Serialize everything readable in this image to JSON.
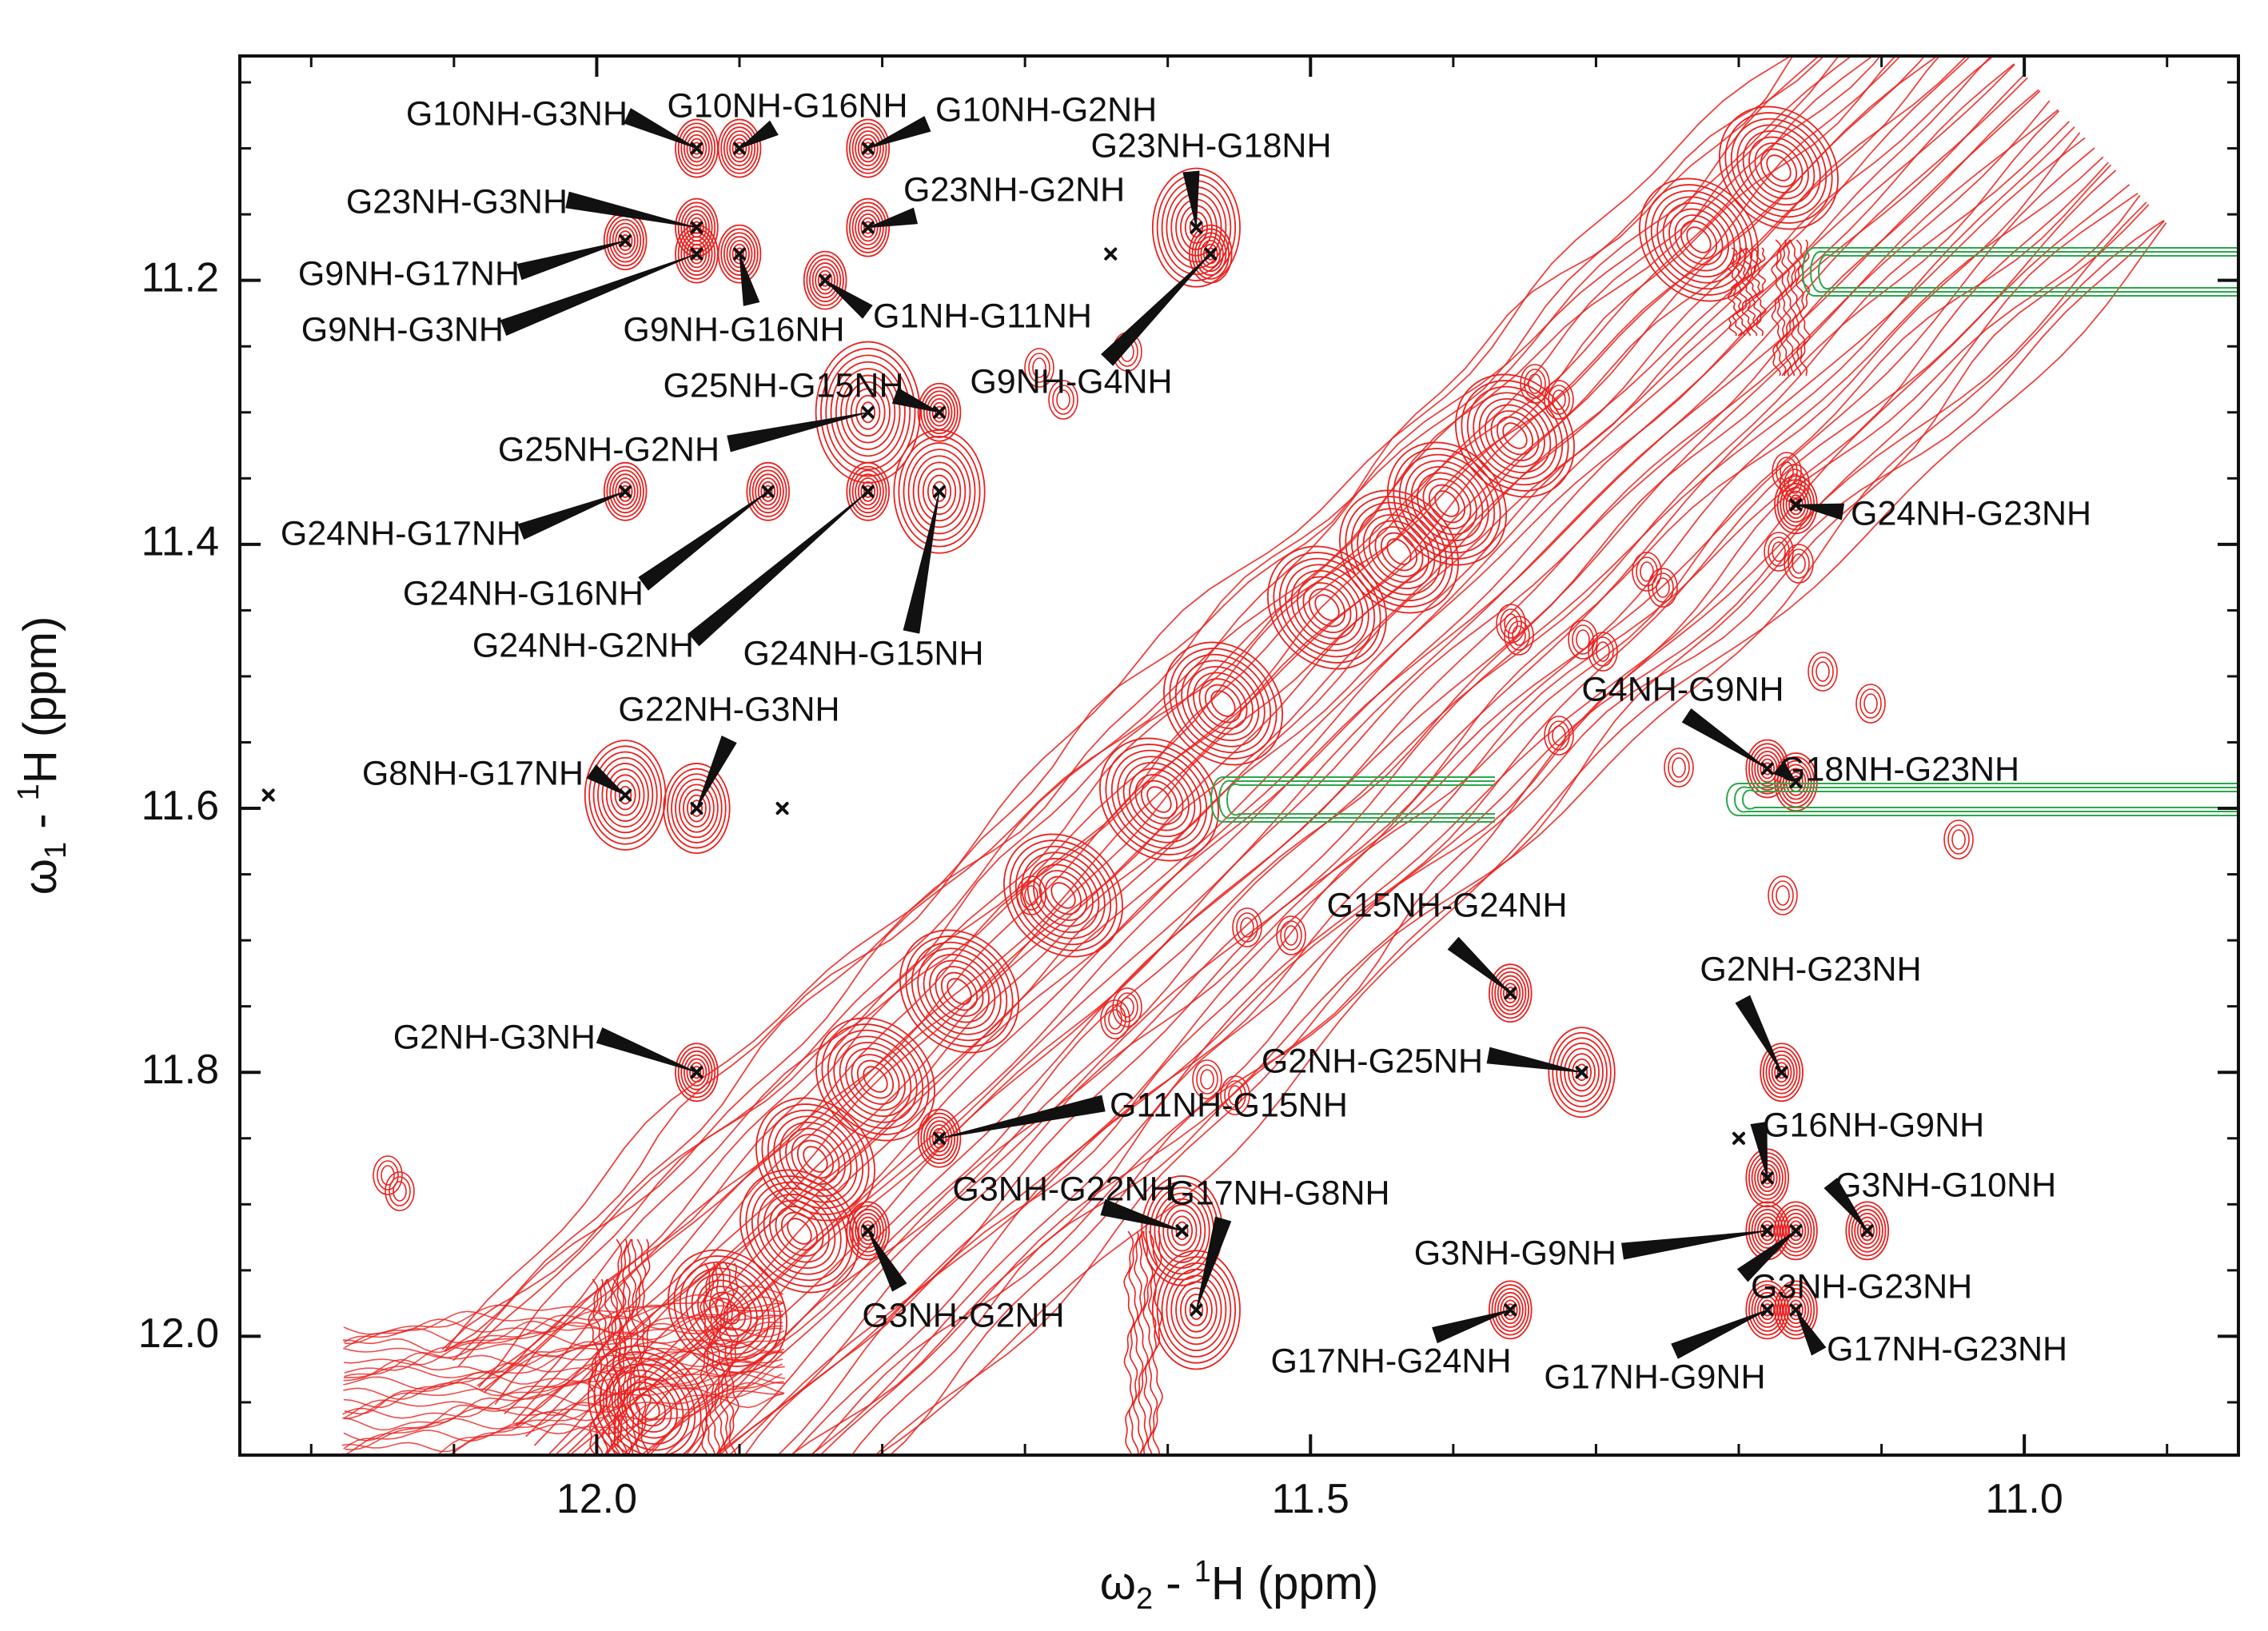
{
  "chart_data": {
    "type": "scatter",
    "title": "",
    "xlabel": {
      "prefix": "ω",
      "sub": "2",
      "mid": " - ",
      "sup": "1",
      "suffix": "H  (ppm)"
    },
    "ylabel": {
      "prefix": "ω",
      "sub": "1",
      "mid": " - ",
      "sup": "1",
      "suffix": "H  (ppm)"
    },
    "xlim": [
      12.25,
      10.85
    ],
    "ylim": [
      11.03,
      12.09
    ],
    "x_ticks": [
      {
        "value": 12.0,
        "label": "12.0"
      },
      {
        "value": 11.5,
        "label": "11.5"
      },
      {
        "value": 11.0,
        "label": "11.0"
      }
    ],
    "y_ticks": [
      {
        "value": 11.2,
        "label": "11.2"
      },
      {
        "value": 11.4,
        "label": "11.4"
      },
      {
        "value": 11.6,
        "label": "11.6"
      },
      {
        "value": 11.8,
        "label": "11.8"
      },
      {
        "value": 12.0,
        "label": "12.0"
      }
    ],
    "colors": {
      "positive_contour": "#e8221f",
      "negative_contour": "#2aa84a",
      "marker": "#111111",
      "axis": "#111111"
    },
    "cross_peaks": [
      {
        "label": "G10NH-G3NH",
        "x": 11.93,
        "y": 11.1
      },
      {
        "label": "G10NH-G16NH",
        "x": 11.9,
        "y": 11.1
      },
      {
        "label": "G10NH-G2NH",
        "x": 11.81,
        "y": 11.1
      },
      {
        "label": "G23NH-G18NH",
        "x": 11.58,
        "y": 11.16
      },
      {
        "label": "G23NH-G3NH",
        "x": 11.93,
        "y": 11.16
      },
      {
        "label": "G23NH-G2NH",
        "x": 11.81,
        "y": 11.16
      },
      {
        "label": "G9NH-G17NH",
        "x": 11.98,
        "y": 11.17
      },
      {
        "label": "G9NH-G3NH",
        "x": 11.93,
        "y": 11.18
      },
      {
        "label": "G9NH-G16NH",
        "x": 11.9,
        "y": 11.18
      },
      {
        "label": "G1NH-G11NH",
        "x": 11.84,
        "y": 11.2
      },
      {
        "label": "G9NH-G4NH",
        "x": 11.57,
        "y": 11.18
      },
      {
        "label": "G25NH-G15NH",
        "x": 11.76,
        "y": 11.3
      },
      {
        "label": "G25NH-G2NH",
        "x": 11.81,
        "y": 11.3
      },
      {
        "label": "G24NH-G17NH",
        "x": 11.98,
        "y": 11.36
      },
      {
        "label": "G24NH-G16NH",
        "x": 11.88,
        "y": 11.36
      },
      {
        "label": "G24NH-G2NH",
        "x": 11.81,
        "y": 11.36
      },
      {
        "label": "G24NH-G15NH",
        "x": 11.76,
        "y": 11.36
      },
      {
        "label": "G24NH-G23NH",
        "x": 11.16,
        "y": 11.37
      },
      {
        "label": "G4NH-G9NH",
        "x": 11.18,
        "y": 11.57
      },
      {
        "label": "G18NH-G23NH",
        "x": 11.16,
        "y": 11.58
      },
      {
        "label": "G8NH-G17NH",
        "x": 11.98,
        "y": 11.59
      },
      {
        "label": "G22NH-G3NH",
        "x": 11.93,
        "y": 11.6
      },
      {
        "label": "G15NH-G24NH",
        "x": 11.36,
        "y": 11.74
      },
      {
        "label": "G2NH-G23NH",
        "x": 11.17,
        "y": 11.8
      },
      {
        "label": "G2NH-G25NH",
        "x": 11.31,
        "y": 11.8
      },
      {
        "label": "G2NH-G3NH",
        "x": 11.93,
        "y": 11.8
      },
      {
        "label": "G11NH-G15NH",
        "x": 11.76,
        "y": 11.85
      },
      {
        "label": "G16NH-G9NH",
        "x": 11.18,
        "y": 11.88
      },
      {
        "label": "G3NH-G10NH",
        "x": 11.11,
        "y": 11.92
      },
      {
        "label": "G3NH-G22NH",
        "x": 11.59,
        "y": 11.92
      },
      {
        "label": "G17NH-G8NH",
        "x": 11.58,
        "y": 11.98
      },
      {
        "label": "G3NH-G9NH",
        "x": 11.18,
        "y": 11.92
      },
      {
        "label": "G3NH-G23NH",
        "x": 11.16,
        "y": 11.92
      },
      {
        "label": "G3NH-G2NH",
        "x": 11.81,
        "y": 11.92
      },
      {
        "label": "G17NH-G24NH",
        "x": 11.36,
        "y": 11.98
      },
      {
        "label": "G17NH-G9NH",
        "x": 11.18,
        "y": 11.98
      },
      {
        "label": "G17NH-G23NH",
        "x": 11.16,
        "y": 11.98
      }
    ],
    "unlabeled_peaks": [
      {
        "x": 12.23,
        "y": 11.59
      },
      {
        "x": 11.87,
        "y": 11.6
      },
      {
        "x": 11.64,
        "y": 11.18
      },
      {
        "x": 11.2,
        "y": 11.85
      }
    ]
  }
}
